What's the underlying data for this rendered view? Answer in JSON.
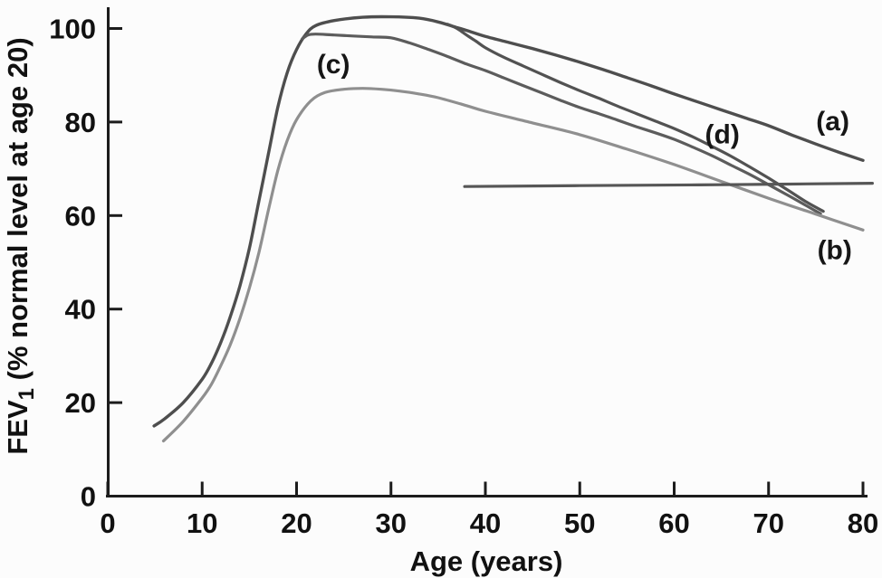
{
  "figure": {
    "background": "#fcfcfc",
    "text_color": "#111111",
    "axis_color": "#1c1c1c"
  },
  "chart_data": {
    "type": "line",
    "title": "",
    "xlabel": "Age (years)",
    "ylabel": "FEV1 (% normal level at age 20)",
    "ylabel_parts": {
      "main": "FEV",
      "sub": "1",
      "rest": " (% normal level at age 20)"
    },
    "xlim": [
      0,
      80
    ],
    "ylim": [
      0,
      100
    ],
    "x_ticks": [
      0,
      10,
      20,
      30,
      40,
      50,
      60,
      70,
      80
    ],
    "y_ticks": [
      0,
      20,
      40,
      60,
      80,
      100
    ],
    "grid": false,
    "legend_position": "none (curves labeled inline with letters)",
    "series": [
      {
        "id": "a",
        "label": "(a)",
        "color": "#4e4e4e",
        "stroke_width": 3.4,
        "points": [
          [
            4.9,
            15
          ],
          [
            6,
            16.5
          ],
          [
            8,
            20
          ],
          [
            10,
            25
          ],
          [
            11,
            28.5
          ],
          [
            12,
            33
          ],
          [
            13,
            38.5
          ],
          [
            14,
            45
          ],
          [
            15,
            53
          ],
          [
            16,
            63
          ],
          [
            17,
            73
          ],
          [
            18,
            83
          ],
          [
            19,
            90.5
          ],
          [
            20,
            95.5
          ],
          [
            21,
            98.8
          ],
          [
            22,
            100.6
          ],
          [
            24,
            101.7
          ],
          [
            27,
            102.4
          ],
          [
            30,
            102.5
          ],
          [
            33,
            102.2
          ],
          [
            35,
            101.4
          ],
          [
            37,
            100.2
          ],
          [
            38,
            99.6
          ],
          [
            40,
            98.3
          ],
          [
            42.5,
            97
          ],
          [
            45,
            95.7
          ],
          [
            47.5,
            94.3
          ],
          [
            50,
            92.8
          ],
          [
            52.5,
            91.2
          ],
          [
            55,
            89.5
          ],
          [
            57.5,
            87.8
          ],
          [
            60,
            86
          ],
          [
            62.5,
            84.3
          ],
          [
            65,
            82.6
          ],
          [
            67.5,
            80.9
          ],
          [
            70,
            79.2
          ],
          [
            72.5,
            77.2
          ],
          [
            75,
            75.3
          ],
          [
            77.5,
            73.5
          ],
          [
            80,
            71.8
          ]
        ]
      },
      {
        "id": "c",
        "label": "(c)",
        "color": "#5c5c5c",
        "stroke_width": 3.2,
        "points": [
          [
            20.6,
            97.8
          ],
          [
            21.2,
            98.6
          ],
          [
            22,
            98.8
          ],
          [
            24,
            98.6
          ],
          [
            26,
            98.4
          ],
          [
            28,
            98.2
          ],
          [
            30,
            98
          ],
          [
            32,
            96.9
          ],
          [
            34,
            95.5
          ],
          [
            36,
            94
          ],
          [
            38,
            92.4
          ],
          [
            40,
            91
          ],
          [
            42,
            89.4
          ],
          [
            44,
            87.8
          ],
          [
            46,
            86.2
          ],
          [
            48,
            84.6
          ],
          [
            50,
            83.1
          ],
          [
            52,
            81.8
          ],
          [
            54,
            80.4
          ],
          [
            56,
            79
          ],
          [
            58,
            77.7
          ],
          [
            60,
            76.3
          ],
          [
            62,
            74.6
          ],
          [
            64,
            72.8
          ],
          [
            66,
            70.8
          ],
          [
            68,
            68.8
          ],
          [
            70,
            66.6
          ],
          [
            72,
            64.4
          ],
          [
            74,
            62.1
          ],
          [
            75.5,
            60.4
          ]
        ]
      },
      {
        "id": "d",
        "label": "(d)",
        "color": "#525252",
        "stroke_width": 3.2,
        "points": [
          [
            36,
            100.9
          ],
          [
            37,
            100
          ],
          [
            38,
            98.6
          ],
          [
            39,
            97.3
          ],
          [
            40,
            95.9
          ],
          [
            42,
            93.8
          ],
          [
            44,
            92
          ],
          [
            46,
            90.2
          ],
          [
            48,
            88.4
          ],
          [
            50,
            86.7
          ],
          [
            52,
            85.1
          ],
          [
            54,
            83.4
          ],
          [
            56,
            81.8
          ],
          [
            58,
            80.2
          ],
          [
            60,
            78.6
          ],
          [
            62,
            76.8
          ],
          [
            64,
            74.8
          ],
          [
            66,
            72.7
          ],
          [
            68,
            70.4
          ],
          [
            70,
            68
          ],
          [
            72,
            65.5
          ],
          [
            74,
            62.9
          ],
          [
            75.8,
            60.9
          ]
        ]
      },
      {
        "id": "b",
        "label": "(b)",
        "color": "#8f8f8f",
        "stroke_width": 3.2,
        "points": [
          [
            5.9,
            11.8
          ],
          [
            8,
            16
          ],
          [
            10,
            21
          ],
          [
            11,
            24
          ],
          [
            12,
            28
          ],
          [
            13,
            32.5
          ],
          [
            14,
            38
          ],
          [
            15,
            44.5
          ],
          [
            16,
            52
          ],
          [
            17,
            61
          ],
          [
            18,
            69.5
          ],
          [
            19,
            76
          ],
          [
            20,
            80.5
          ],
          [
            21.5,
            84.5
          ],
          [
            23,
            86.3
          ],
          [
            25,
            87
          ],
          [
            27,
            87.2
          ],
          [
            29,
            87
          ],
          [
            31,
            86.6
          ],
          [
            33,
            86
          ],
          [
            35,
            85.2
          ],
          [
            38,
            83.5
          ],
          [
            40,
            82.3
          ],
          [
            45,
            79.8
          ],
          [
            50,
            77.3
          ],
          [
            55,
            74.2
          ],
          [
            60,
            70.9
          ],
          [
            65,
            67.3
          ],
          [
            70,
            63.7
          ],
          [
            75,
            60.3
          ],
          [
            80,
            56.9
          ]
        ]
      },
      {
        "id": "horizontal",
        "label": null,
        "color": "#565656",
        "stroke_width": 3.2,
        "points": [
          [
            37.8,
            66.2
          ],
          [
            50,
            66.4
          ],
          [
            65,
            66.6
          ],
          [
            81,
            66.9
          ]
        ]
      }
    ],
    "annotations": [
      {
        "id": "a",
        "text": "(a)",
        "x": 76.8,
        "y": 80.2
      },
      {
        "id": "b",
        "text": "(b)",
        "x": 77.0,
        "y": 52.6
      },
      {
        "id": "c",
        "text": "(c)",
        "x": 23.9,
        "y": 92.4
      },
      {
        "id": "d",
        "text": "(d)",
        "x": 65.1,
        "y": 77.4
      }
    ]
  }
}
